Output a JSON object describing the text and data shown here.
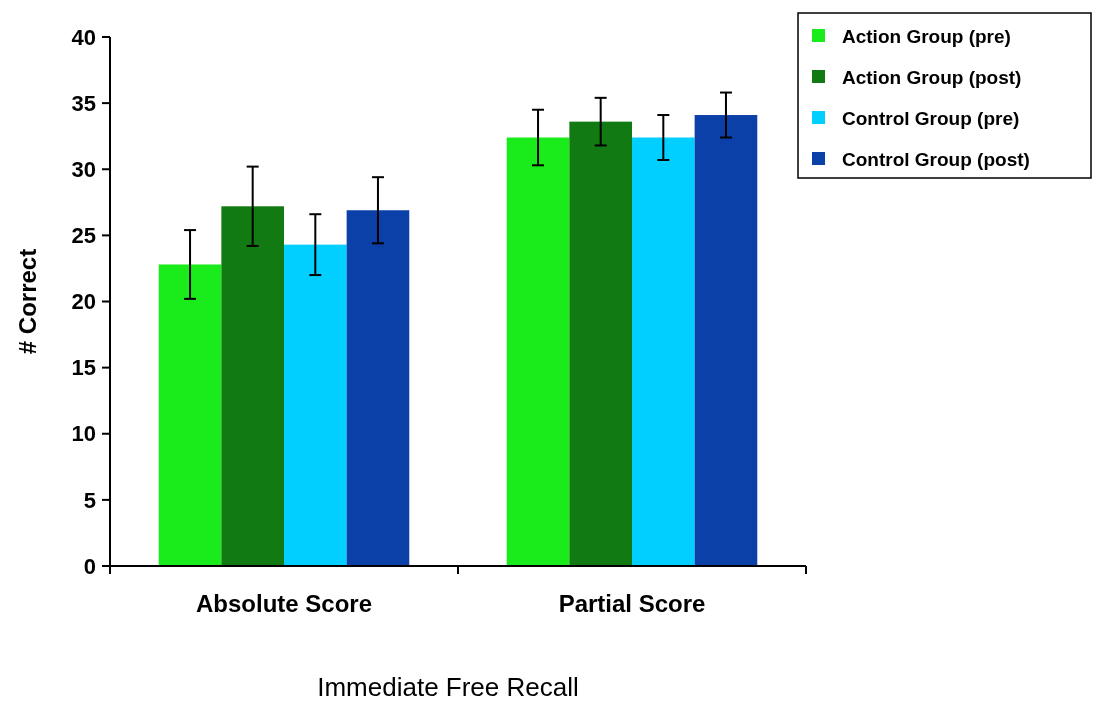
{
  "chart_data": {
    "type": "bar",
    "xlabel": "Immediate Free Recall",
    "ylabel": "# Correct",
    "categories": [
      "Absolute Score",
      "Partial Score"
    ],
    "series": [
      {
        "name": "Action Group (pre)",
        "color": "#1aeb1a",
        "values": [
          22.8,
          32.4
        ],
        "errors": [
          2.6,
          2.1
        ]
      },
      {
        "name": "Action Group (post)",
        "color": "#127a12",
        "values": [
          27.2,
          33.6
        ],
        "errors": [
          3,
          1.8
        ]
      },
      {
        "name": "Control Group (pre)",
        "color": "#00cfff",
        "values": [
          24.3,
          32.4
        ],
        "errors": [
          2.3,
          1.7
        ]
      },
      {
        "name": "Control Group (post)",
        "color": "#0b40a8",
        "values": [
          26.9,
          34.1
        ],
        "errors": [
          2.5,
          1.7
        ]
      }
    ],
    "ylim": [
      0,
      40
    ],
    "yticks": [
      0,
      5,
      10,
      15,
      20,
      25,
      30,
      35,
      40
    ],
    "grid": false,
    "legend": "top right"
  }
}
